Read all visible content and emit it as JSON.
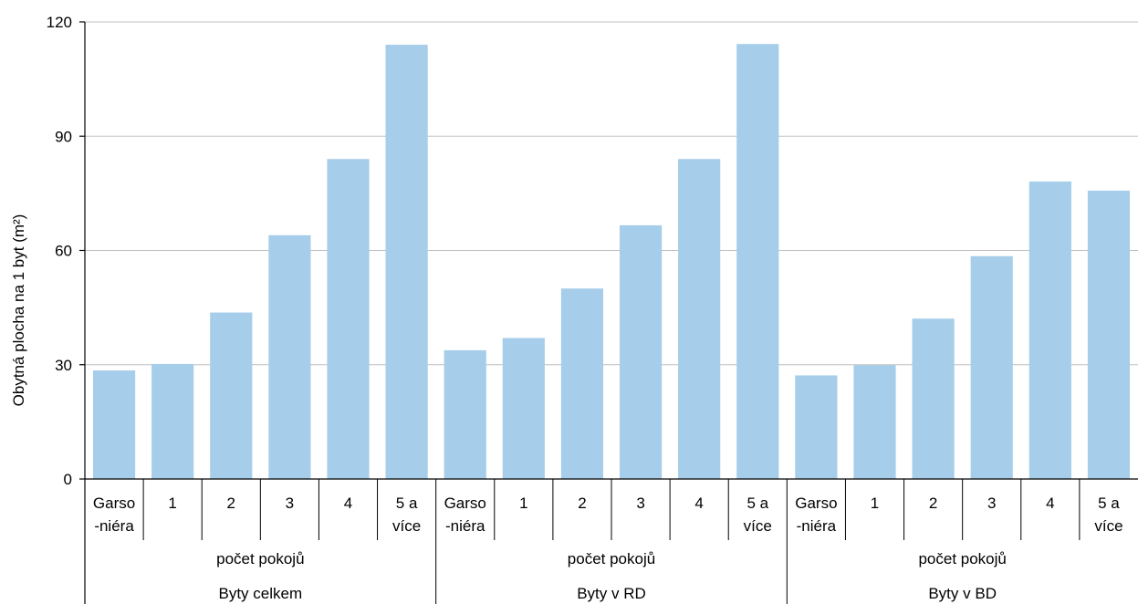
{
  "chart_data": {
    "type": "bar",
    "ylabel": "Obytná plocha na 1 byt (m²)",
    "ylim": [
      0,
      120
    ],
    "yticks": [
      "0",
      "30",
      "60",
      "90",
      "120"
    ],
    "grid": true,
    "bar_color": "#a6cde9",
    "groups": [
      {
        "name": "Byty celkem",
        "sublabel": "počet pokojů",
        "categories": [
          [
            "Garso",
            "-niéra"
          ],
          [
            "1"
          ],
          [
            "2"
          ],
          [
            "3"
          ],
          [
            "4"
          ],
          [
            "5 a",
            "více"
          ]
        ],
        "values": [
          28.5,
          30.2,
          43.7,
          64.0,
          84.0,
          114.0
        ]
      },
      {
        "name": "Byty v RD",
        "sublabel": "počet pokojů",
        "categories": [
          [
            "Garso",
            "-niéra"
          ],
          [
            "1"
          ],
          [
            "2"
          ],
          [
            "3"
          ],
          [
            "4"
          ],
          [
            "5 a",
            "více"
          ]
        ],
        "values": [
          33.8,
          37.0,
          50.0,
          66.6,
          84.0,
          114.2
        ]
      },
      {
        "name": "Byty v BD",
        "sublabel": "počet pokojů",
        "categories": [
          [
            "Garso",
            "-niéra"
          ],
          [
            "1"
          ],
          [
            "2"
          ],
          [
            "3"
          ],
          [
            "4"
          ],
          [
            "5 a",
            "více"
          ]
        ],
        "values": [
          27.2,
          29.9,
          42.1,
          58.5,
          78.1,
          75.7
        ]
      }
    ]
  }
}
